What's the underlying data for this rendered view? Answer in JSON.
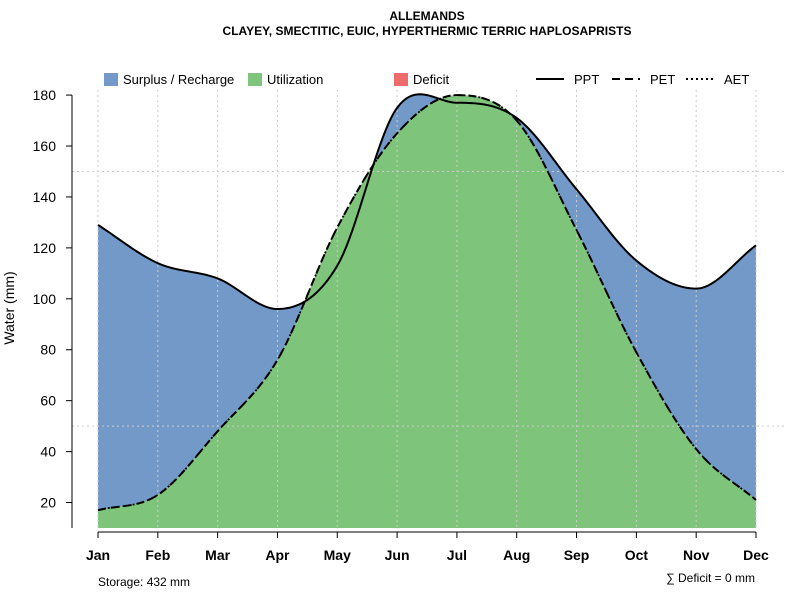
{
  "chart_data": {
    "type": "area",
    "title": "ALLEMANDS",
    "subtitle": "CLAYEY, SMECTITIC, EUIC, HYPERTHERMIC TERRIC HAPLOSAPRISTS",
    "ylabel": "Water (mm)",
    "xlabel": "",
    "ylim": [
      10,
      182
    ],
    "yticks": [
      20,
      40,
      60,
      80,
      100,
      120,
      140,
      160,
      180
    ],
    "categories": [
      "Jan",
      "Feb",
      "Mar",
      "Apr",
      "May",
      "Jun",
      "Jul",
      "Aug",
      "Sep",
      "Oct",
      "Nov",
      "Dec"
    ],
    "series": [
      {
        "name": "PPT",
        "style": "solid",
        "values": [
          129,
          114,
          108,
          96,
          113,
          175,
          177,
          171,
          143,
          115,
          104,
          121
        ]
      },
      {
        "name": "PET",
        "style": "dashed",
        "values": [
          17,
          23,
          48,
          76,
          128,
          165,
          180,
          170,
          127,
          79,
          41,
          21
        ]
      },
      {
        "name": "AET",
        "style": "dotted",
        "values": [
          17,
          23,
          48,
          76,
          128,
          165,
          180,
          170,
          127,
          79,
          41,
          21
        ]
      }
    ],
    "legend": {
      "areas": [
        {
          "label": "Surplus / Recharge",
          "color": "#7399c9"
        },
        {
          "label": "Utilization",
          "color": "#7ec47a"
        },
        {
          "label": "Deficit",
          "color": "#ee6b6b"
        }
      ],
      "lines": [
        {
          "label": "PPT",
          "style": "solid"
        },
        {
          "label": "PET",
          "style": "dashed"
        },
        {
          "label": "AET",
          "style": "dotted"
        }
      ]
    },
    "grid": true,
    "storage_label": "Storage: 432 mm",
    "deficit_label": "∑ Deficit = 0 mm"
  }
}
